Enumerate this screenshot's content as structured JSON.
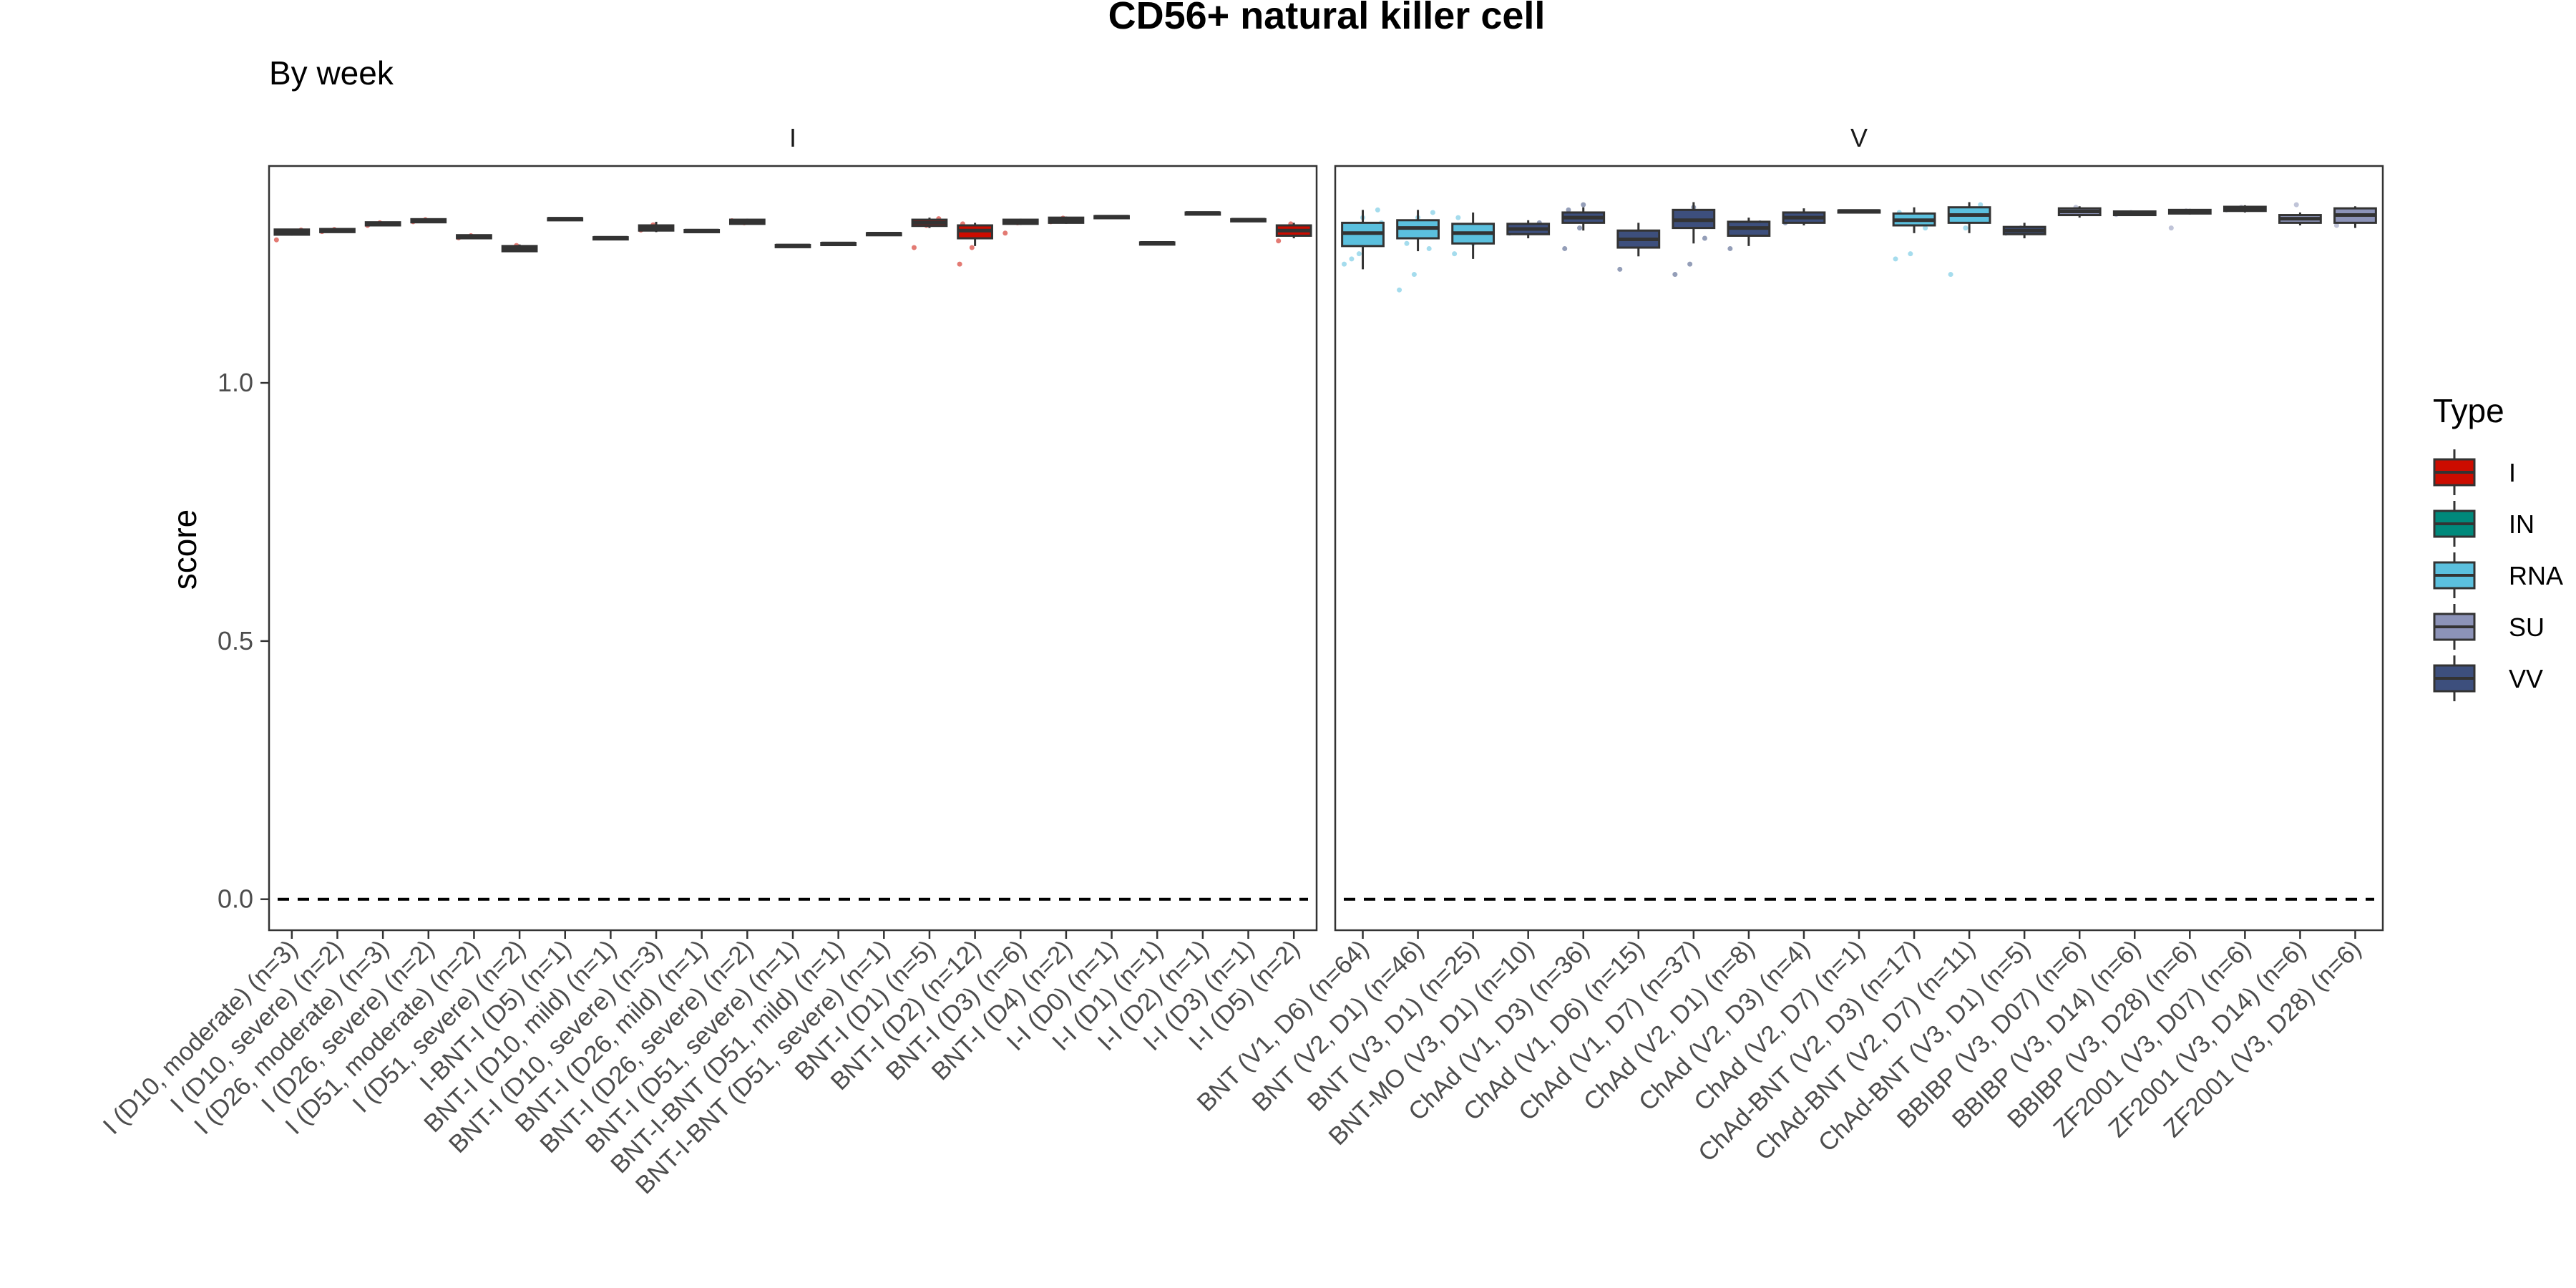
{
  "chart_data": {
    "type": "box",
    "title": "CD56+ natural killer cell",
    "subtitle": "By week",
    "ylabel": "score",
    "ylim": [
      -0.06,
      1.42
    ],
    "yticks": [
      0.0,
      0.5,
      1.0
    ],
    "ytick_labels": [
      "0.0",
      "0.5",
      "1.0"
    ],
    "reference_line": {
      "y": 0.0,
      "style": "dashed"
    },
    "grid": false,
    "legend": {
      "title": "Type",
      "position": "right",
      "items": [
        {
          "label": "I",
          "color": "#CC0C00"
        },
        {
          "label": "IN",
          "color": "#00897B"
        },
        {
          "label": "RNA",
          "color": "#5BC0DE"
        },
        {
          "label": "SU",
          "color": "#8C93B8"
        },
        {
          "label": "VV",
          "color": "#3D4F7D"
        }
      ]
    },
    "panels": [
      {
        "label": "I",
        "groups": [
          {
            "label": "I (D10, moderate) (n=3)",
            "type": "I",
            "q1": 1.287,
            "median": 1.292,
            "q3": 1.297,
            "min": 1.285,
            "max": 1.298,
            "points": [
              1.277,
              1.293,
              1.296
            ]
          },
          {
            "label": "I (D10, severe) (n=2)",
            "type": "I",
            "q1": 1.292,
            "median": 1.295,
            "q3": 1.298,
            "min": 1.292,
            "max": 1.298,
            "points": [
              1.293,
              1.297
            ]
          },
          {
            "label": "I (D26, moderate) (n=3)",
            "type": "I",
            "q1": 1.305,
            "median": 1.308,
            "q3": 1.311,
            "min": 1.304,
            "max": 1.312,
            "points": [
              1.305,
              1.31
            ]
          },
          {
            "label": "I (D26, severe) (n=2)",
            "type": "I",
            "q1": 1.311,
            "median": 1.314,
            "q3": 1.317,
            "min": 1.311,
            "max": 1.317,
            "points": [
              1.312,
              1.316
            ]
          },
          {
            "label": "I (D51, moderate) (n=2)",
            "type": "I",
            "q1": 1.28,
            "median": 1.283,
            "q3": 1.286,
            "min": 1.28,
            "max": 1.286,
            "points": [
              1.281,
              1.285
            ]
          },
          {
            "label": "I (D51, severe) (n=2)",
            "type": "I",
            "q1": 1.255,
            "median": 1.26,
            "q3": 1.265,
            "min": 1.254,
            "max": 1.268,
            "points": [
              1.262,
              1.266
            ]
          },
          {
            "label": "I-BNT-I (D5) (n=1)",
            "type": "I",
            "q1": 1.317,
            "median": 1.318,
            "q3": 1.319,
            "min": 1.317,
            "max": 1.319,
            "points": []
          },
          {
            "label": "BNT-I (D10, mild) (n=1)",
            "type": "I",
            "q1": 1.28,
            "median": 1.281,
            "q3": 1.282,
            "min": 1.28,
            "max": 1.282,
            "points": []
          },
          {
            "label": "BNT-I (D10, severe) (n=3)",
            "type": "I",
            "q1": 1.295,
            "median": 1.3,
            "q3": 1.305,
            "min": 1.292,
            "max": 1.312,
            "points": [
              1.296,
              1.306
            ]
          },
          {
            "label": "BNT-I (D26, mild) (n=1)",
            "type": "I",
            "q1": 1.294,
            "median": 1.295,
            "q3": 1.296,
            "min": 1.294,
            "max": 1.296,
            "points": []
          },
          {
            "label": "BNT-I (D26, severe) (n=2)",
            "type": "I",
            "q1": 1.308,
            "median": 1.312,
            "q3": 1.316,
            "min": 1.307,
            "max": 1.318,
            "points": [
              1.314,
              1.31
            ]
          },
          {
            "label": "BNT-I (D51, severe) (n=1)",
            "type": "I",
            "q1": 1.265,
            "median": 1.266,
            "q3": 1.267,
            "min": 1.265,
            "max": 1.267,
            "points": []
          },
          {
            "label": "BNT-I-BNT (D51, mild) (n=1)",
            "type": "I",
            "q1": 1.269,
            "median": 1.27,
            "q3": 1.271,
            "min": 1.269,
            "max": 1.271,
            "points": []
          },
          {
            "label": "BNT-I-BNT (D51, severe) (n=1)",
            "type": "I",
            "q1": 1.288,
            "median": 1.289,
            "q3": 1.29,
            "min": 1.288,
            "max": 1.29,
            "points": []
          },
          {
            "label": "BNT-I (D1) (n=5)",
            "type": "I",
            "q1": 1.304,
            "median": 1.31,
            "q3": 1.316,
            "min": 1.3,
            "max": 1.32,
            "points": [
              1.262,
              1.305,
              1.318
            ]
          },
          {
            "label": "BNT-I (D2) (n=12)",
            "type": "I",
            "q1": 1.28,
            "median": 1.295,
            "q3": 1.305,
            "min": 1.265,
            "max": 1.31,
            "points": [
              1.23,
              1.262,
              1.299,
              1.308
            ]
          },
          {
            "label": "BNT-I (D3) (n=6)",
            "type": "I",
            "q1": 1.308,
            "median": 1.312,
            "q3": 1.316,
            "min": 1.306,
            "max": 1.318,
            "points": [
              1.29,
              1.31
            ]
          },
          {
            "label": "BNT-I (D4) (n=2)",
            "type": "I",
            "q1": 1.31,
            "median": 1.315,
            "q3": 1.32,
            "min": 1.308,
            "max": 1.322,
            "points": [
              1.312,
              1.319
            ]
          },
          {
            "label": "I-I (D0) (n=1)",
            "type": "I",
            "q1": 1.321,
            "median": 1.322,
            "q3": 1.323,
            "min": 1.321,
            "max": 1.323,
            "points": []
          },
          {
            "label": "I-I (D1) (n=1)",
            "type": "I",
            "q1": 1.27,
            "median": 1.271,
            "q3": 1.272,
            "min": 1.27,
            "max": 1.272,
            "points": []
          },
          {
            "label": "I-I (D2) (n=1)",
            "type": "I",
            "q1": 1.328,
            "median": 1.329,
            "q3": 1.33,
            "min": 1.328,
            "max": 1.33,
            "points": []
          },
          {
            "label": "I-I (D3) (n=1)",
            "type": "I",
            "q1": 1.315,
            "median": 1.316,
            "q3": 1.317,
            "min": 1.315,
            "max": 1.317,
            "points": []
          },
          {
            "label": "I-I (D5) (n=2)",
            "type": "I",
            "q1": 1.285,
            "median": 1.295,
            "q3": 1.305,
            "min": 1.28,
            "max": 1.31,
            "points": [
              1.275,
              1.308
            ]
          }
        ]
      },
      {
        "label": "V",
        "groups": [
          {
            "label": "BNT (V1, D6) (n=64)",
            "type": "RNA",
            "q1": 1.265,
            "median": 1.29,
            "q3": 1.31,
            "min": 1.22,
            "max": 1.335,
            "points": [
              1.23,
              1.25,
              1.27,
              1.3,
              1.32,
              1.335,
              1.24,
              1.28,
              1.31,
              1.29
            ]
          },
          {
            "label": "BNT (V2, D1) (n=46)",
            "type": "RNA",
            "q1": 1.28,
            "median": 1.3,
            "q3": 1.315,
            "min": 1.255,
            "max": 1.335,
            "points": [
              1.18,
              1.21,
              1.26,
              1.29,
              1.32,
              1.33,
              1.27
            ]
          },
          {
            "label": "BNT (V3, D1) (n=25)",
            "type": "RNA",
            "q1": 1.27,
            "median": 1.29,
            "q3": 1.308,
            "min": 1.24,
            "max": 1.33,
            "points": [
              1.25,
              1.28,
              1.3,
              1.32,
              1.27
            ]
          },
          {
            "label": "BNT-MO (V3, D1) (n=10)",
            "type": "VV",
            "q1": 1.288,
            "median": 1.298,
            "q3": 1.308,
            "min": 1.28,
            "max": 1.315,
            "points": [
              1.29,
              1.3,
              1.31
            ]
          },
          {
            "label": "ChAd (V1, D3) (n=36)",
            "type": "VV",
            "q1": 1.31,
            "median": 1.32,
            "q3": 1.33,
            "min": 1.295,
            "max": 1.34,
            "points": [
              1.26,
              1.3,
              1.32,
              1.335,
              1.345
            ]
          },
          {
            "label": "ChAd (V1, D6) (n=15)",
            "type": "VV",
            "q1": 1.262,
            "median": 1.278,
            "q3": 1.295,
            "min": 1.245,
            "max": 1.31,
            "points": [
              1.22,
              1.27,
              1.29
            ]
          },
          {
            "label": "ChAd (V1, D7) (n=37)",
            "type": "VV",
            "q1": 1.3,
            "median": 1.315,
            "q3": 1.335,
            "min": 1.27,
            "max": 1.35,
            "points": [
              1.21,
              1.23,
              1.28,
              1.32,
              1.34
            ]
          },
          {
            "label": "ChAd (V2, D1) (n=8)",
            "type": "VV",
            "q1": 1.285,
            "median": 1.3,
            "q3": 1.312,
            "min": 1.265,
            "max": 1.32,
            "points": [
              1.26,
              1.29,
              1.31
            ]
          },
          {
            "label": "ChAd (V2, D3) (n=4)",
            "type": "VV",
            "q1": 1.31,
            "median": 1.32,
            "q3": 1.33,
            "min": 1.305,
            "max": 1.338,
            "points": [
              1.31,
              1.325
            ]
          },
          {
            "label": "ChAd (V2, D7) (n=1)",
            "type": "VV",
            "q1": 1.332,
            "median": 1.333,
            "q3": 1.334,
            "min": 1.332,
            "max": 1.334,
            "points": []
          },
          {
            "label": "ChAd-BNT (V2, D3) (n=17)",
            "type": "RNA",
            "q1": 1.305,
            "median": 1.315,
            "q3": 1.328,
            "min": 1.29,
            "max": 1.34,
            "points": [
              1.24,
              1.25,
              1.3,
              1.33
            ]
          },
          {
            "label": "ChAd-BNT (V2, D7) (n=11)",
            "type": "RNA",
            "q1": 1.31,
            "median": 1.325,
            "q3": 1.34,
            "min": 1.29,
            "max": 1.35,
            "points": [
              1.21,
              1.3,
              1.345
            ]
          },
          {
            "label": "ChAd-BNT (V3, D1) (n=5)",
            "type": "VV",
            "q1": 1.288,
            "median": 1.295,
            "q3": 1.302,
            "min": 1.28,
            "max": 1.31,
            "points": [
              1.29,
              1.3
            ]
          },
          {
            "label": "BBIBP (V3, D07) (n=6)",
            "type": "SU",
            "q1": 1.325,
            "median": 1.332,
            "q3": 1.338,
            "min": 1.32,
            "max": 1.342,
            "points": [
              1.33,
              1.34
            ]
          },
          {
            "label": "BBIBP (V3, D14) (n=6)",
            "type": "SU",
            "q1": 1.325,
            "median": 1.328,
            "q3": 1.332,
            "min": 1.323,
            "max": 1.334,
            "points": [
              1.326,
              1.33
            ]
          },
          {
            "label": "BBIBP (V3, D28) (n=6)",
            "type": "SU",
            "q1": 1.328,
            "median": 1.332,
            "q3": 1.335,
            "min": 1.326,
            "max": 1.337,
            "points": [
              1.3,
              1.333
            ]
          },
          {
            "label": "ZF2001 (V3, D07) (n=6)",
            "type": "SU",
            "q1": 1.333,
            "median": 1.337,
            "q3": 1.341,
            "min": 1.33,
            "max": 1.344,
            "points": [
              1.335,
              1.34
            ]
          },
          {
            "label": "ZF2001 (V3, D14) (n=6)",
            "type": "SU",
            "q1": 1.31,
            "median": 1.318,
            "q3": 1.325,
            "min": 1.305,
            "max": 1.33,
            "points": [
              1.315,
              1.345,
              1.32
            ]
          },
          {
            "label": "ZF2001 (V3, D28) (n=6)",
            "type": "SU",
            "q1": 1.31,
            "median": 1.325,
            "q3": 1.338,
            "min": 1.3,
            "max": 1.342,
            "points": [
              1.305,
              1.33
            ]
          }
        ]
      }
    ]
  }
}
